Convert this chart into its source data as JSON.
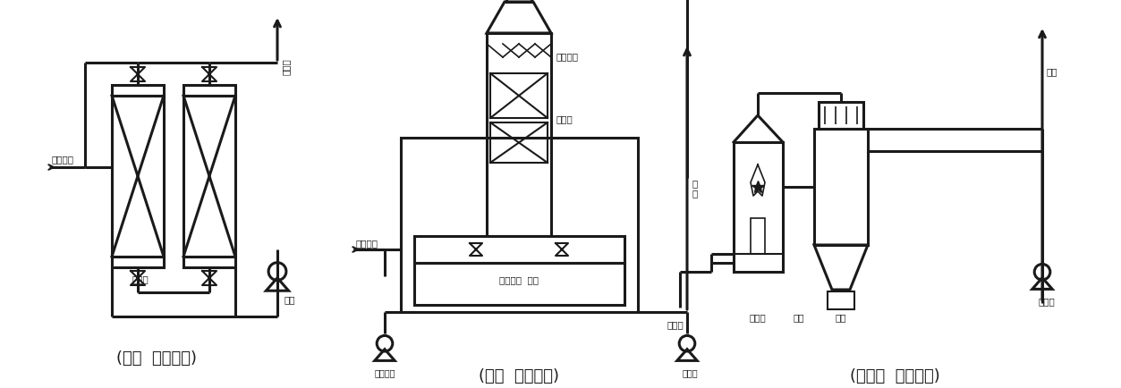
{
  "background_color": "#ffffff",
  "line_color": "#1a1a1a",
  "label1": "(건식  처리방법)",
  "label2": "(습식  처리방법)",
  "label3": "(연소식  처리방법)",
  "label_fontsize": 13,
  "small_fontsize": 7.5,
  "fig_width": 12.53,
  "fig_height": 4.35,
  "dpi": 100
}
